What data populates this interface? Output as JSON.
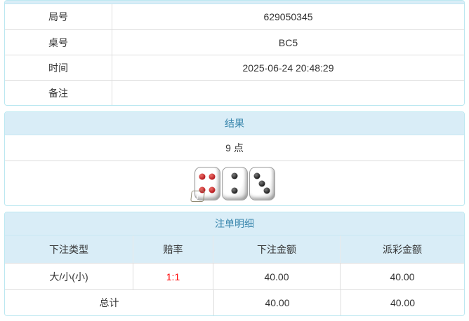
{
  "colors": {
    "panel_border": "#bce8f1",
    "heading_bg": "#d9edf7",
    "heading_text": "#3a87ad",
    "odds_text": "#ff0000",
    "body_text": "#333333"
  },
  "info_table": {
    "rows": [
      {
        "label": "局号",
        "value": "629050345"
      },
      {
        "label": "桌号",
        "value": "BC5"
      },
      {
        "label": "时间",
        "value": "2025-06-24 20:48:29"
      },
      {
        "label": "备注",
        "value": ""
      }
    ]
  },
  "result_panel": {
    "title": "结果",
    "points": "9 点",
    "dice": [
      {
        "pips": 4,
        "color": "red",
        "info_badge": true,
        "badge_label": "i"
      },
      {
        "pips": 2,
        "color": "black",
        "info_badge": false,
        "badge_label": ""
      },
      {
        "pips": 3,
        "color": "black",
        "info_badge": false,
        "badge_label": ""
      }
    ]
  },
  "bet_panel": {
    "title": "注单明细",
    "columns": [
      "下注类型",
      "赔率",
      "下注金额",
      "派彩金额"
    ],
    "rows": [
      {
        "bet_type": "大/小(小)",
        "odds": "1:1",
        "bet_amount": "40.00",
        "payout_amount": "40.00"
      }
    ],
    "total_row": {
      "label": "总计",
      "bet_amount": "40.00",
      "payout_amount": "40.00"
    }
  }
}
